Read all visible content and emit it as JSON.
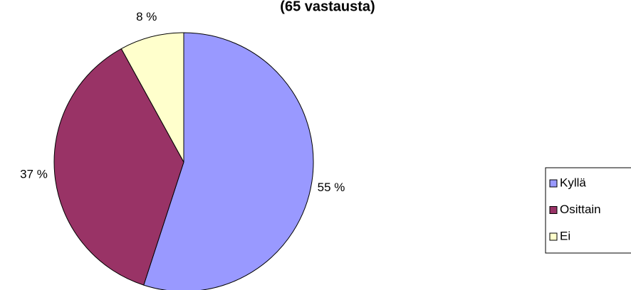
{
  "chart_data": {
    "type": "pie",
    "title": "(65 vastausta)",
    "categories": [
      "Kyllä",
      "Osittain",
      "Ei"
    ],
    "values": [
      55,
      37,
      8
    ],
    "value_labels": [
      "55 %",
      "37 %",
      "8 %"
    ],
    "colors": [
      "#9999ff",
      "#993366",
      "#ffffcc"
    ],
    "legend": "right"
  }
}
